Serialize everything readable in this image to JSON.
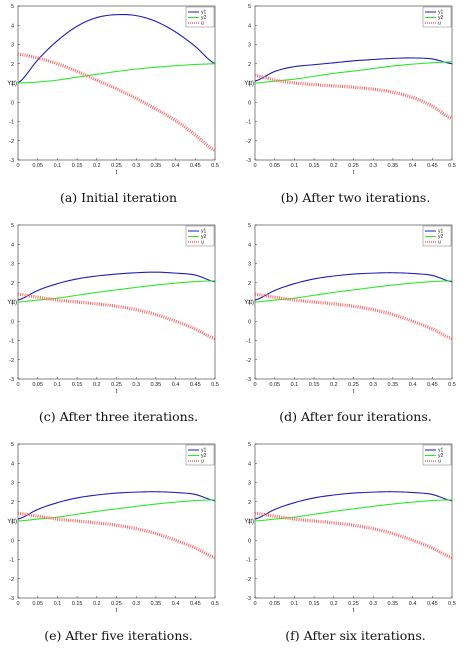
{
  "figure": {
    "captions": [
      "(a) Initial iteration",
      "(b) After two iterations.",
      "(c) After three iterations.",
      "(d) After four iterations.",
      "(e) After five iterations.",
      "(f) After six iterations."
    ]
  },
  "colors": {
    "y1": "#1f1fb4",
    "y2": "#2ee82e",
    "u": "#ff6a6a"
  },
  "chart_data": [
    {
      "type": "line",
      "title": "",
      "xlabel": "t",
      "ylabel": "Y(t)",
      "xlim": [
        0,
        0.5
      ],
      "ylim": [
        -3,
        5
      ],
      "xticks": [
        "0",
        "0.05",
        "0.1",
        "0.15",
        "0.2",
        "0.25",
        "0.3",
        "0.35",
        "0.4",
        "0.45",
        "0.5"
      ],
      "yticks": [
        "-3",
        "-2",
        "-1",
        "0",
        "1",
        "2",
        "3",
        "4",
        "5"
      ],
      "legend": "top-right",
      "x": [
        0,
        0.05,
        0.1,
        0.15,
        0.2,
        0.25,
        0.3,
        0.35,
        0.4,
        0.45,
        0.5
      ],
      "series": [
        {
          "name": "y1",
          "values": [
            1.0,
            2.2,
            3.2,
            3.95,
            4.4,
            4.55,
            4.5,
            4.2,
            3.65,
            2.9,
            2.0
          ]
        },
        {
          "name": "y2",
          "values": [
            1.0,
            1.05,
            1.15,
            1.3,
            1.45,
            1.6,
            1.72,
            1.82,
            1.9,
            1.96,
            2.0
          ]
        },
        {
          "name": "u",
          "values": [
            2.5,
            2.3,
            2.0,
            1.6,
            1.15,
            0.7,
            0.2,
            -0.35,
            -0.95,
            -1.7,
            -2.5
          ]
        }
      ]
    },
    {
      "type": "line",
      "title": "",
      "xlabel": "t",
      "ylabel": "Y(t)",
      "xlim": [
        0,
        0.5
      ],
      "ylim": [
        -3,
        5
      ],
      "xticks": [
        "0",
        "0.05",
        "0.1",
        "0.15",
        "0.2",
        "0.25",
        "0.3",
        "0.35",
        "0.4",
        "0.45",
        "0.5"
      ],
      "yticks": [
        "-3",
        "-2",
        "-1",
        "0",
        "1",
        "2",
        "3",
        "4",
        "5"
      ],
      "legend": "top-right",
      "x": [
        0,
        0.05,
        0.1,
        0.15,
        0.2,
        0.25,
        0.3,
        0.35,
        0.4,
        0.45,
        0.5
      ],
      "series": [
        {
          "name": "y1",
          "values": [
            1.1,
            1.6,
            1.85,
            1.95,
            2.05,
            2.15,
            2.22,
            2.28,
            2.3,
            2.25,
            2.0
          ]
        },
        {
          "name": "y2",
          "values": [
            1.0,
            1.1,
            1.2,
            1.35,
            1.5,
            1.62,
            1.75,
            1.88,
            1.98,
            2.05,
            2.1
          ]
        },
        {
          "name": "u",
          "values": [
            1.4,
            1.15,
            1.0,
            0.92,
            0.85,
            0.78,
            0.68,
            0.52,
            0.25,
            -0.2,
            -0.85
          ]
        }
      ]
    },
    {
      "type": "line",
      "title": "",
      "xlabel": "t",
      "ylabel": "Y(t)",
      "xlim": [
        0,
        0.5
      ],
      "ylim": [
        -3,
        5
      ],
      "xticks": [
        "0",
        "0.05",
        "0.1",
        "0.15",
        "0.2",
        "0.25",
        "0.3",
        "0.35",
        "0.4",
        "0.45",
        "0.5"
      ],
      "yticks": [
        "-3",
        "-2",
        "-1",
        "0",
        "1",
        "2",
        "3",
        "4",
        "5"
      ],
      "legend": "top-right",
      "x": [
        0,
        0.05,
        0.1,
        0.15,
        0.2,
        0.25,
        0.3,
        0.35,
        0.4,
        0.45,
        0.5
      ],
      "series": [
        {
          "name": "y1",
          "values": [
            1.1,
            1.6,
            1.95,
            2.2,
            2.35,
            2.45,
            2.52,
            2.55,
            2.5,
            2.4,
            2.05
          ]
        },
        {
          "name": "y2",
          "values": [
            1.0,
            1.1,
            1.2,
            1.35,
            1.5,
            1.63,
            1.76,
            1.88,
            1.98,
            2.06,
            2.1
          ]
        },
        {
          "name": "u",
          "values": [
            1.4,
            1.25,
            1.1,
            1.0,
            0.9,
            0.78,
            0.6,
            0.35,
            0.0,
            -0.4,
            -0.9
          ]
        }
      ]
    },
    {
      "type": "line",
      "title": "",
      "xlabel": "t",
      "ylabel": "Y(t)",
      "xlim": [
        0,
        0.5
      ],
      "ylim": [
        -3,
        5
      ],
      "xticks": [
        "0",
        "0.05",
        "0.1",
        "0.15",
        "0.2",
        "0.25",
        "0.3",
        "0.35",
        "0.4",
        "0.45",
        "0.5"
      ],
      "yticks": [
        "-3",
        "-2",
        "-1",
        "0",
        "1",
        "2",
        "3",
        "4",
        "5"
      ],
      "legend": "top-right",
      "x": [
        0,
        0.05,
        0.1,
        0.15,
        0.2,
        0.25,
        0.3,
        0.35,
        0.4,
        0.45,
        0.5
      ],
      "series": [
        {
          "name": "y1",
          "values": [
            1.1,
            1.6,
            1.95,
            2.2,
            2.35,
            2.45,
            2.5,
            2.52,
            2.48,
            2.38,
            2.05
          ]
        },
        {
          "name": "y2",
          "values": [
            1.0,
            1.1,
            1.2,
            1.35,
            1.5,
            1.63,
            1.76,
            1.88,
            1.98,
            2.06,
            2.1
          ]
        },
        {
          "name": "u",
          "values": [
            1.4,
            1.25,
            1.1,
            1.0,
            0.9,
            0.78,
            0.6,
            0.35,
            0.0,
            -0.4,
            -0.9
          ]
        }
      ]
    },
    {
      "type": "line",
      "title": "",
      "xlabel": "t",
      "ylabel": "Y(t)",
      "xlim": [
        0,
        0.5
      ],
      "ylim": [
        -3,
        5
      ],
      "xticks": [
        "0",
        "0.05",
        "0.1",
        "0.15",
        "0.2",
        "0.25",
        "0.3",
        "0.35",
        "0.4",
        "0.45",
        "0.5"
      ],
      "yticks": [
        "-3",
        "-2",
        "-1",
        "0",
        "1",
        "2",
        "3",
        "4",
        "5"
      ],
      "legend": "top-right",
      "x": [
        0,
        0.05,
        0.1,
        0.15,
        0.2,
        0.25,
        0.3,
        0.35,
        0.4,
        0.45,
        0.5
      ],
      "series": [
        {
          "name": "y1",
          "values": [
            1.1,
            1.6,
            1.95,
            2.2,
            2.35,
            2.45,
            2.5,
            2.52,
            2.48,
            2.38,
            2.05
          ]
        },
        {
          "name": "y2",
          "values": [
            1.0,
            1.1,
            1.2,
            1.35,
            1.5,
            1.63,
            1.76,
            1.88,
            1.98,
            2.06,
            2.1
          ]
        },
        {
          "name": "u",
          "values": [
            1.4,
            1.25,
            1.1,
            1.0,
            0.9,
            0.78,
            0.6,
            0.35,
            0.0,
            -0.4,
            -0.9
          ]
        }
      ]
    },
    {
      "type": "line",
      "title": "",
      "xlabel": "t",
      "ylabel": "Y(t)",
      "xlim": [
        0,
        0.5
      ],
      "ylim": [
        -3,
        5
      ],
      "xticks": [
        "0",
        "0.05",
        "0.1",
        "0.15",
        "0.2",
        "0.25",
        "0.3",
        "0.35",
        "0.4",
        "0.45",
        "0.5"
      ],
      "yticks": [
        "-3",
        "-2",
        "-1",
        "0",
        "1",
        "2",
        "3",
        "4",
        "5"
      ],
      "legend": "top-right",
      "x": [
        0,
        0.05,
        0.1,
        0.15,
        0.2,
        0.25,
        0.3,
        0.35,
        0.4,
        0.45,
        0.5
      ],
      "series": [
        {
          "name": "y1",
          "values": [
            1.1,
            1.6,
            1.95,
            2.2,
            2.35,
            2.45,
            2.5,
            2.52,
            2.48,
            2.38,
            2.05
          ]
        },
        {
          "name": "y2",
          "values": [
            1.0,
            1.1,
            1.2,
            1.35,
            1.5,
            1.63,
            1.76,
            1.88,
            1.98,
            2.06,
            2.1
          ]
        },
        {
          "name": "u",
          "values": [
            1.4,
            1.25,
            1.1,
            1.0,
            0.9,
            0.78,
            0.6,
            0.35,
            0.0,
            -0.4,
            -0.9
          ]
        }
      ]
    }
  ]
}
